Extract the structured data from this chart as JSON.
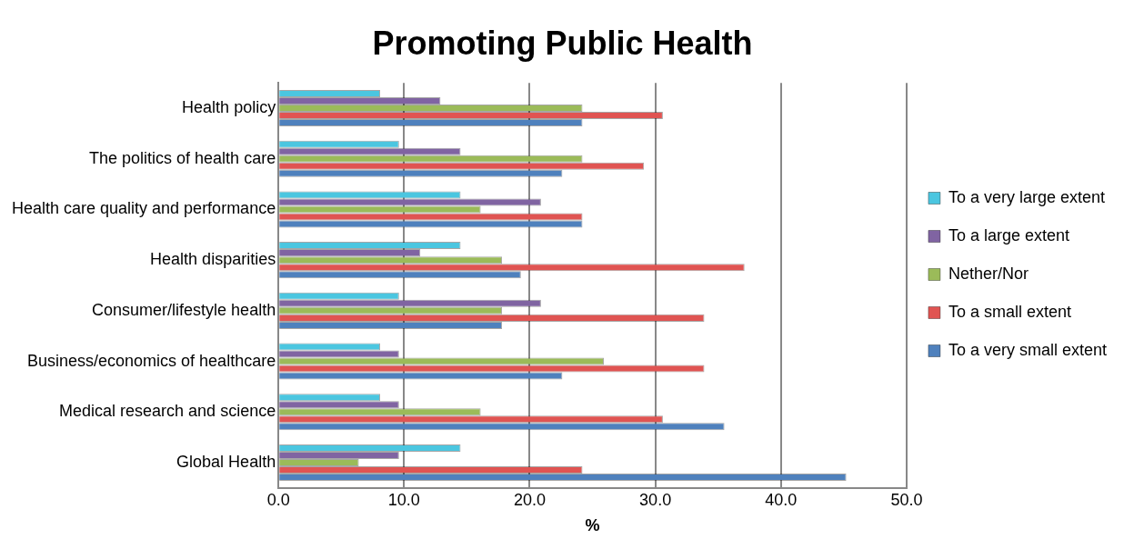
{
  "chart_data": {
    "type": "bar",
    "title": "Promoting Public Health",
    "xlabel": "%",
    "orientation": "horizontal",
    "categories": [
      "Health policy",
      "The politics of health care",
      "Health care quality and performance",
      "Health disparities",
      "Consumer/lifestyle health",
      "Business/economics of healthcare",
      "Medical research and science",
      "Global Health"
    ],
    "series": [
      {
        "name": "To a very large extent",
        "color": "#4bc6e0",
        "values": [
          8.1,
          9.6,
          14.5,
          14.5,
          9.6,
          8.1,
          8.1,
          14.5
        ]
      },
      {
        "name": "To a large extent",
        "color": "#8064a2",
        "values": [
          12.9,
          14.5,
          20.9,
          11.3,
          20.9,
          9.6,
          9.6,
          9.6
        ]
      },
      {
        "name": "Nether/Nor",
        "color": "#9bbb59",
        "values": [
          24.2,
          24.2,
          16.1,
          17.8,
          17.8,
          25.9,
          16.1,
          6.4
        ]
      },
      {
        "name": "To a small extent",
        "color": "#e05452",
        "values": [
          30.6,
          29.1,
          24.2,
          37.1,
          33.9,
          33.9,
          30.6,
          24.2
        ]
      },
      {
        "name": "To a very small extent",
        "color": "#4f81bd",
        "values": [
          24.2,
          22.6,
          24.2,
          19.3,
          17.8,
          22.6,
          35.5,
          45.2
        ]
      }
    ],
    "xlim": [
      0,
      50
    ],
    "xticks": [
      {
        "value": 0,
        "label": "0.0"
      },
      {
        "value": 10,
        "label": "10.0"
      },
      {
        "value": 20,
        "label": "20.0"
      },
      {
        "value": 30,
        "label": "30.0"
      },
      {
        "value": 40,
        "label": "40.0"
      },
      {
        "value": 50,
        "label": "50.0"
      }
    ],
    "grid": "x",
    "legend": "right"
  }
}
